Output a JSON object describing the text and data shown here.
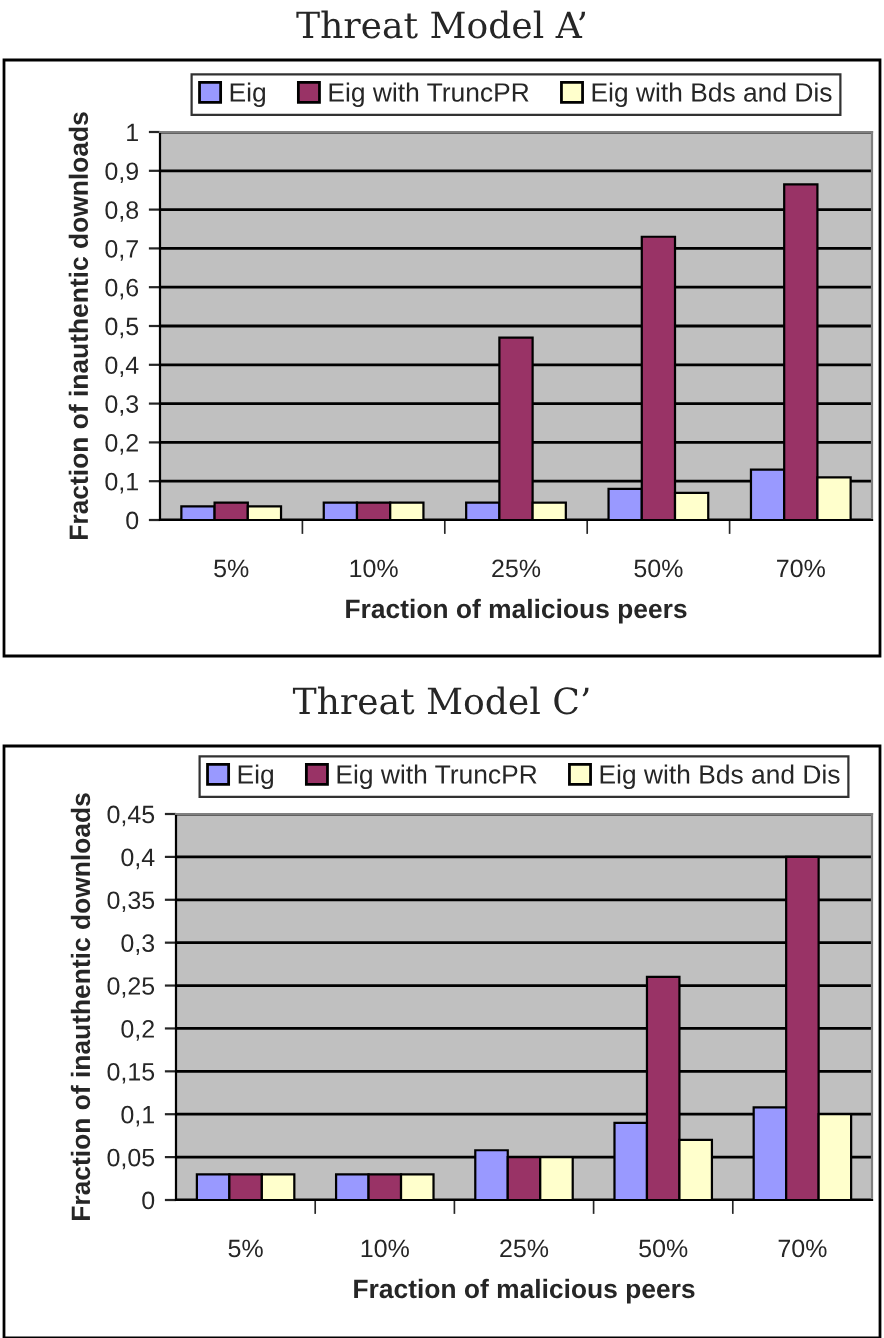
{
  "chart_data": [
    {
      "type": "bar",
      "title": "Threat Model A’",
      "xlabel": "Fraction of malicious peers",
      "ylabel": "Fraction of inauthentic downloads",
      "categories": [
        "5%",
        "10%",
        "25%",
        "50%",
        "70%"
      ],
      "series": [
        {
          "name": "Eig",
          "color": "#9999ff",
          "values": [
            0.035,
            0.045,
            0.045,
            0.08,
            0.13
          ]
        },
        {
          "name": "Eig with TruncPR",
          "color": "#993366",
          "values": [
            0.045,
            0.045,
            0.47,
            0.73,
            0.865
          ]
        },
        {
          "name": "Eig with Bds and Dis",
          "color": "#ffffcc",
          "values": [
            0.035,
            0.045,
            0.045,
            0.07,
            0.11
          ]
        }
      ],
      "ylim": [
        0,
        1
      ],
      "yticks": [
        0,
        {
          "value": 0.1,
          "label": "0,1"
        },
        {
          "value": 0.2,
          "label": "0,2"
        },
        {
          "value": 0.3,
          "label": "0,3"
        },
        {
          "value": 0.4,
          "label": "0,4"
        },
        {
          "value": 0.5,
          "label": "0,5"
        },
        {
          "value": 0.6,
          "label": "0,6"
        },
        {
          "value": 0.7,
          "label": "0,7"
        },
        {
          "value": 0.8,
          "label": "0,8"
        },
        {
          "value": 0.9,
          "label": "0,9"
        },
        1
      ],
      "grid": "y",
      "legend": "top"
    },
    {
      "type": "bar",
      "title": "Threat Model C’",
      "xlabel": "Fraction of malicious peers",
      "ylabel": "Fraction of inauthentic downloads",
      "categories": [
        "5%",
        "10%",
        "25%",
        "50%",
        "70%"
      ],
      "series": [
        {
          "name": "Eig",
          "color": "#9999ff",
          "values": [
            0.03,
            0.03,
            0.058,
            0.09,
            0.108
          ]
        },
        {
          "name": "Eig with TruncPR",
          "color": "#993366",
          "values": [
            0.03,
            0.03,
            0.05,
            0.26,
            0.4
          ]
        },
        {
          "name": "Eig with Bds and Dis",
          "color": "#ffffcc",
          "values": [
            0.03,
            0.03,
            0.05,
            0.07,
            0.1
          ]
        }
      ],
      "ylim": [
        0,
        0.45
      ],
      "yticks": [
        0,
        {
          "value": 0.05,
          "label": "0,05"
        },
        {
          "value": 0.1,
          "label": "0,1"
        },
        {
          "value": 0.15,
          "label": "0,15"
        },
        {
          "value": 0.2,
          "label": "0,2"
        },
        {
          "value": 0.25,
          "label": "0,25"
        },
        {
          "value": 0.3,
          "label": "0,3"
        },
        {
          "value": 0.35,
          "label": "0,35"
        },
        {
          "value": 0.4,
          "label": "0,4"
        },
        {
          "value": 0.45,
          "label": "0,45"
        }
      ],
      "grid": "y",
      "legend": "top"
    }
  ]
}
